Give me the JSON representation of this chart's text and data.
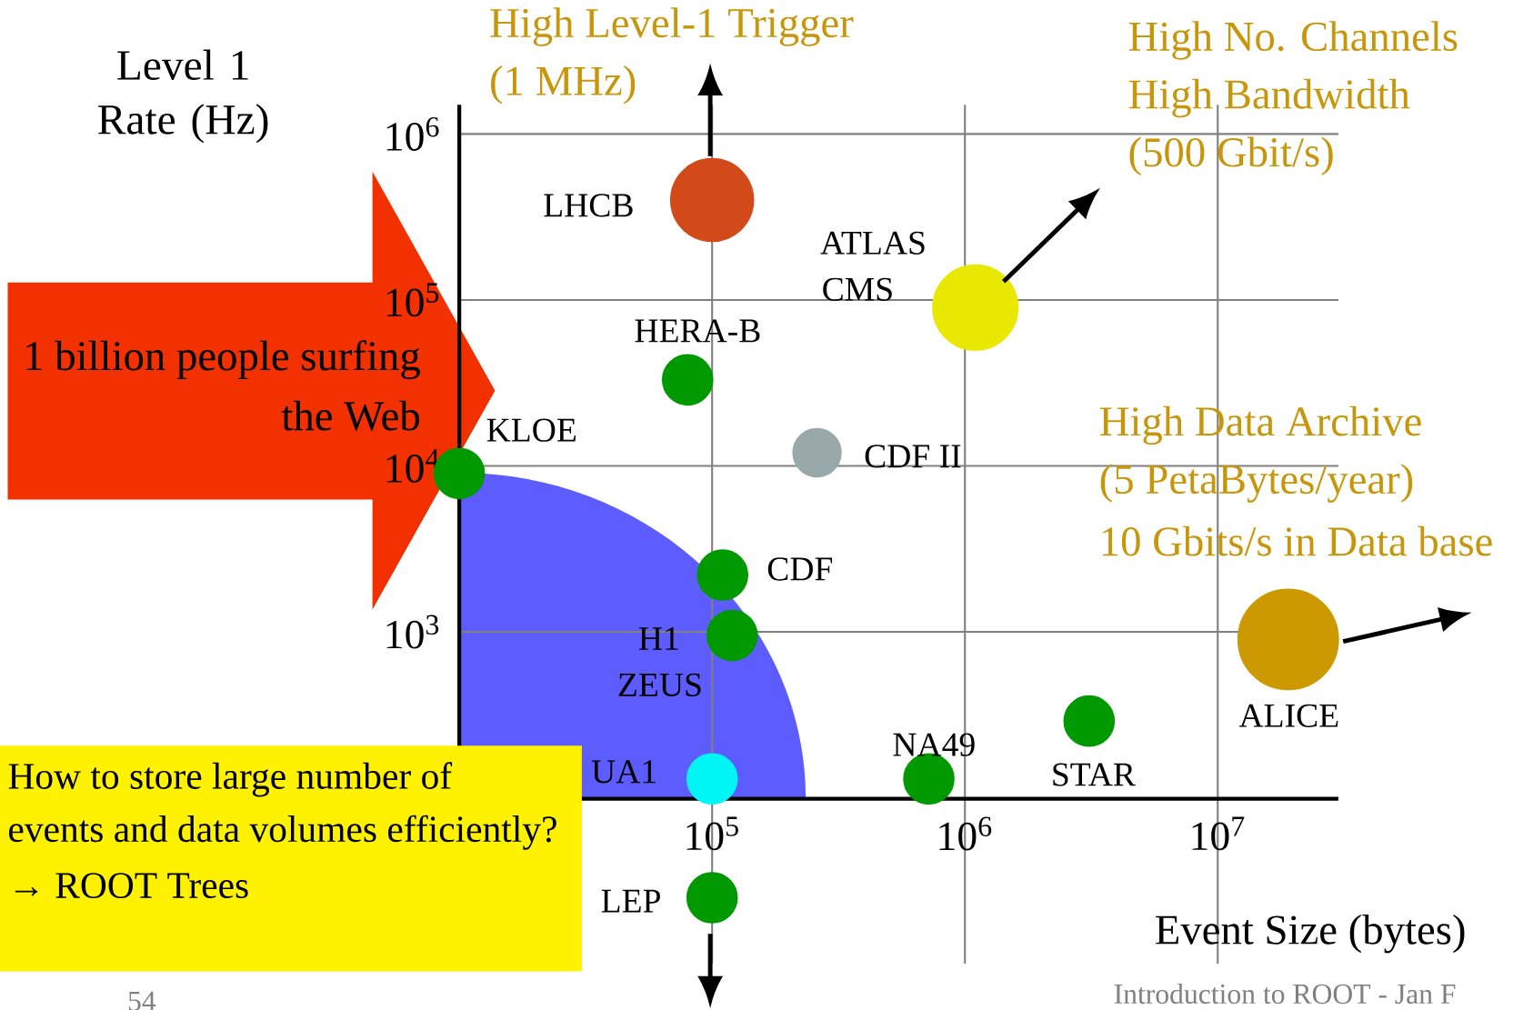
{
  "chart_data": {
    "type": "bubble",
    "xlabel": "Event Size (bytes)",
    "ylabel": "Level 1 Rate (Hz)",
    "x": [
      100000,
      1100000,
      80000,
      10000,
      260000,
      110000,
      120000,
      100000,
      720000,
      3100000,
      19000000,
      100000
    ],
    "values": [
      400000,
      90000,
      33000,
      9000,
      12000,
      2200,
      950,
      130,
      130,
      290,
      900,
      25
    ],
    "sizes": [
      0.68,
      0.72,
      0.25,
      0.25,
      0.23,
      0.25,
      0.25,
      0.25,
      0.25,
      0.25,
      1,
      0.25
    ],
    "colors": [
      "#d24a1a",
      "#e8e800",
      "#009900",
      "#009900",
      "#99a8a8",
      "#009900",
      "#009900",
      "#00f5f5",
      "#009900",
      "#009900",
      "#cc9900",
      "#009900"
    ],
    "grid": true,
    "log": "xy",
    "xlim": [
      10000,
      30000000
    ],
    "ylim": [
      10,
      1500000
    ],
    "xticks": [
      {
        "value": 100000,
        "label": "10$^{5}$"
      },
      {
        "value": 1000000,
        "label": "10$^{6}$"
      },
      {
        "value": 10000000,
        "label": "10$^{7}$"
      }
    ],
    "yticks": [
      {
        "value": 1000,
        "label": "10$^{3}$"
      },
      {
        "value": 10000,
        "label": "10$^{4}$"
      },
      {
        "value": 100000,
        "label": "10$^{5}$"
      },
      {
        "value": 1000000,
        "label": "10$^{6}$"
      }
    ],
    "annotations": [
      "High Level-1 Trigger",
      "(1 MHz)",
      "High No. Channels",
      "High Bandwidth",
      "(500 Gbit/s)",
      "High Data Archive",
      "(5 PetaBytes/year)",
      "10 Gbits/s in Data base",
      "1 billion people surfing",
      "the Web",
      "How to store large number of",
      "events and data volumes efficiently?",
      "→ ROOT Trees",
      "Introduction to ROOT - Jan F",
      "54",
      "LHCB",
      "ATLAS",
      "CMS",
      "HERA-B",
      "KLOE",
      "CDF II",
      "CDF",
      "H1",
      "ZEUS",
      "UA1",
      "NA49",
      "STAR",
      "ALICE",
      "LEP"
    ]
  }
}
